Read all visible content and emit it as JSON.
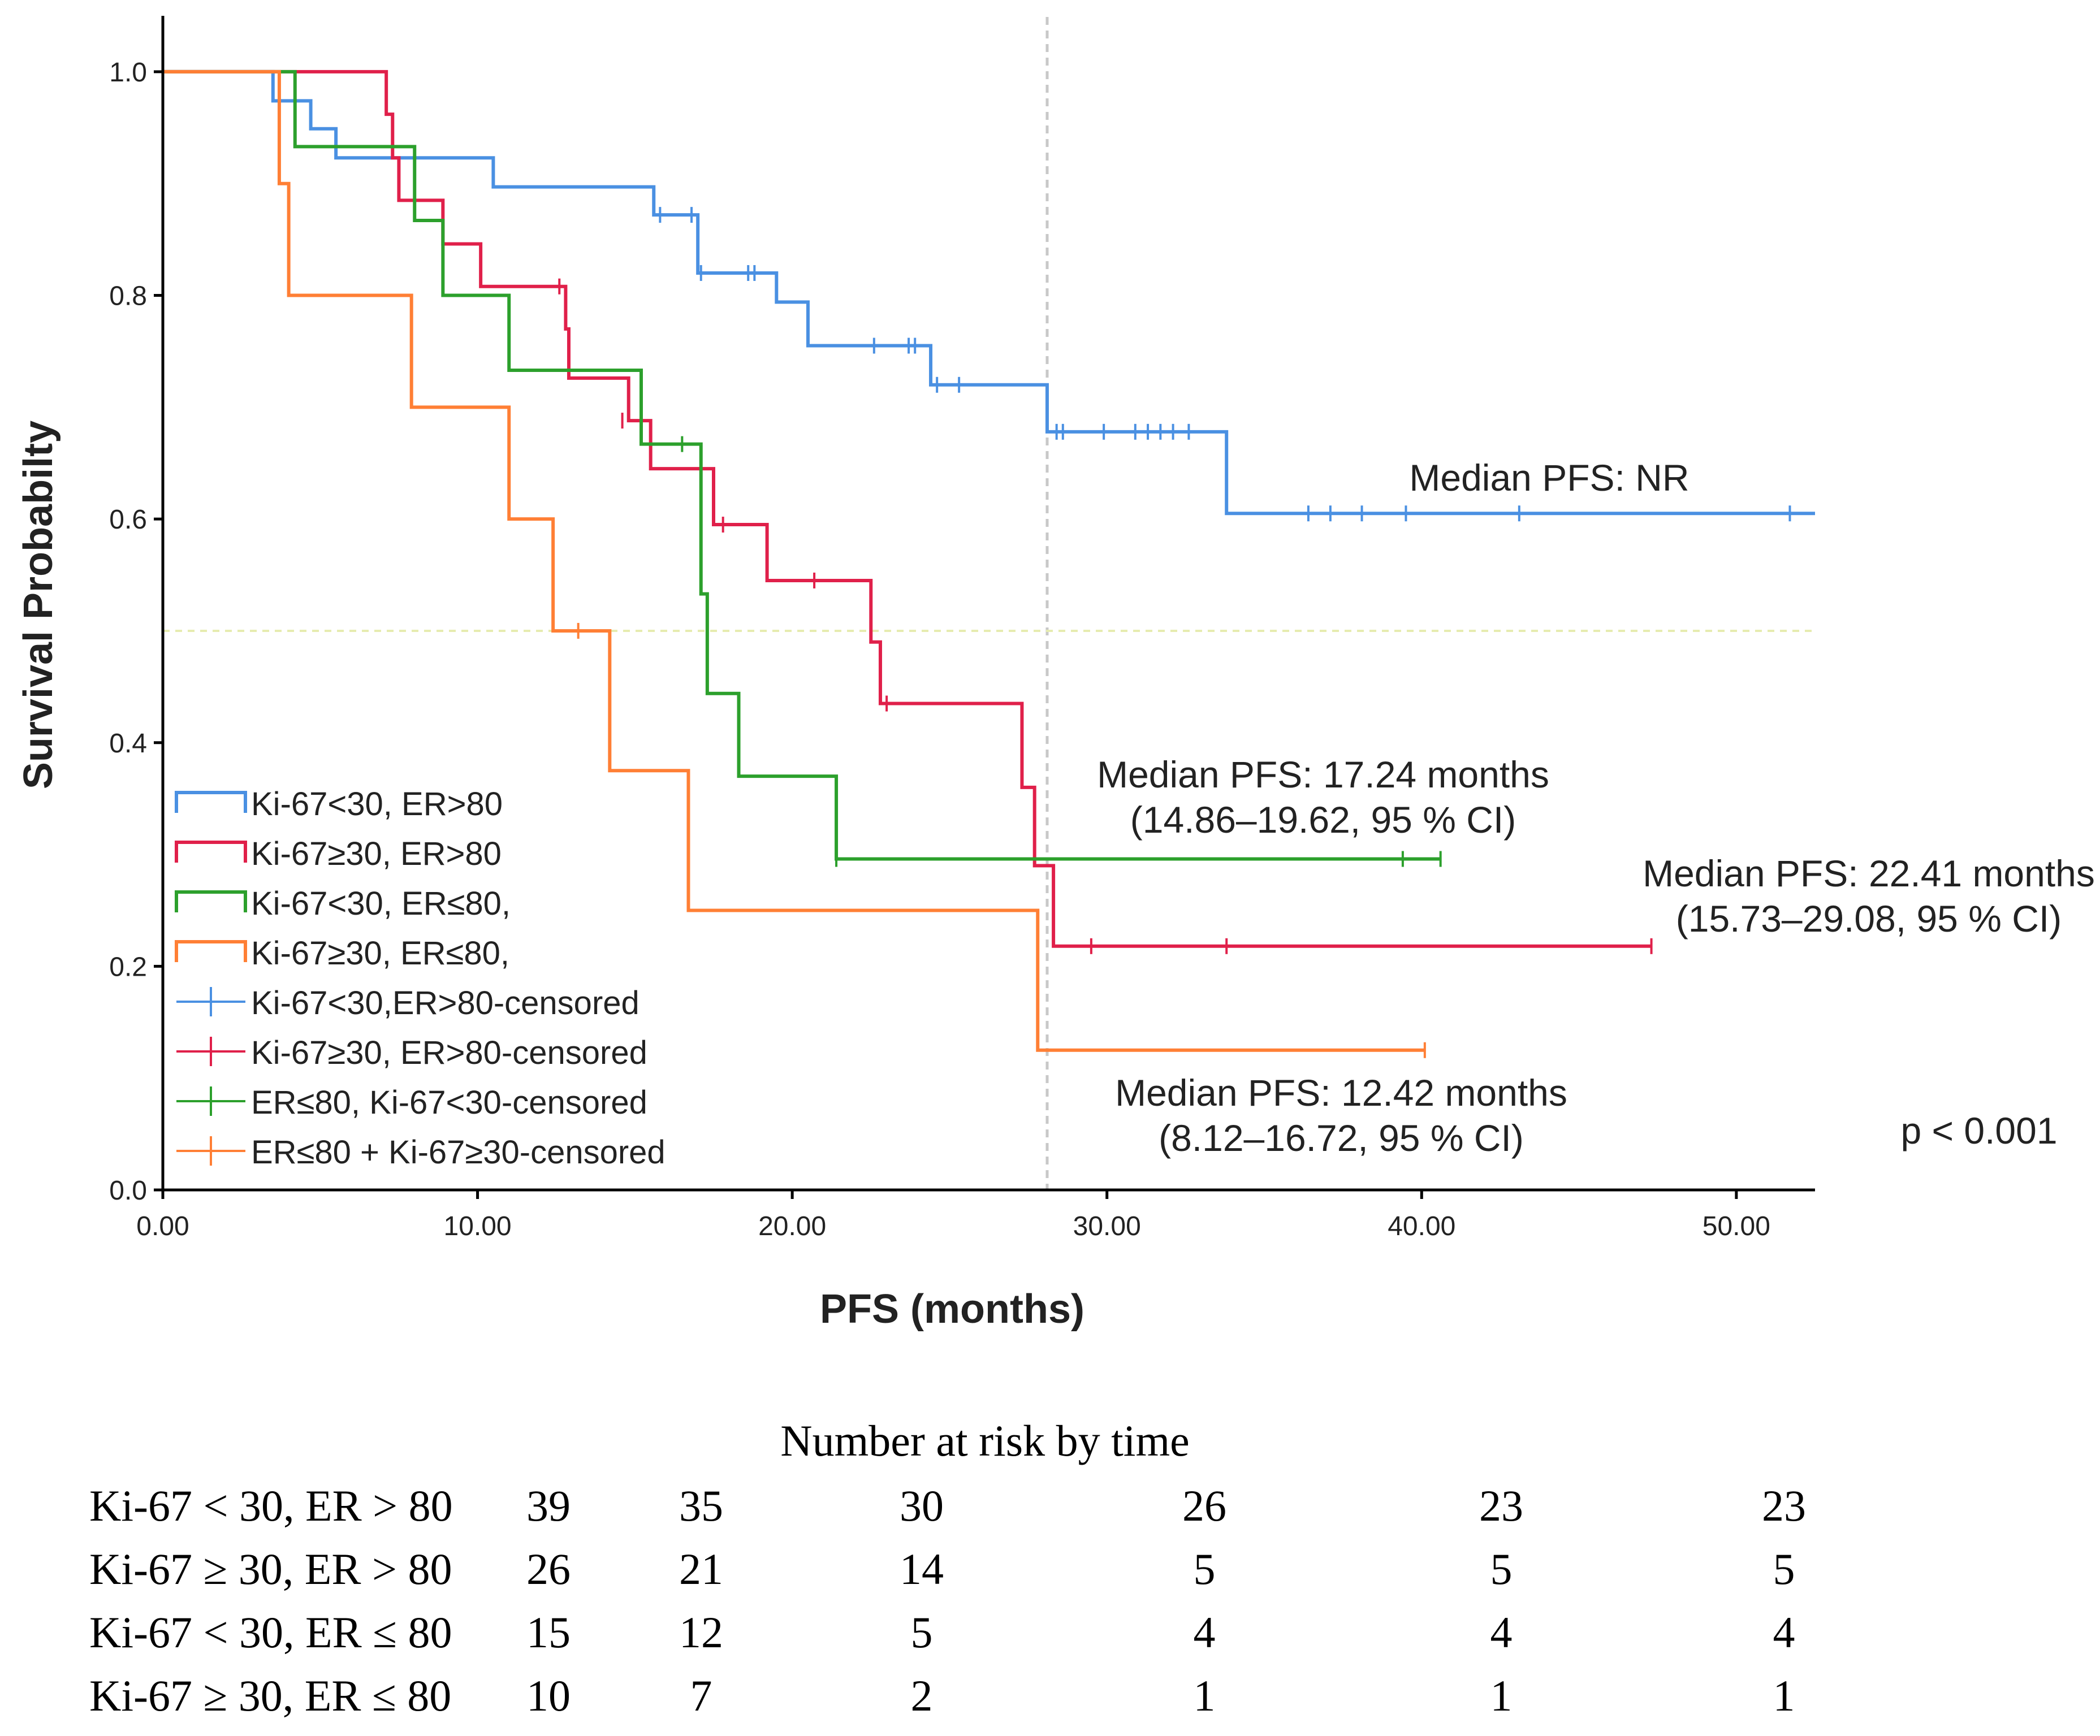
{
  "chart_data": {
    "type": "line",
    "subtype": "kaplan-meier step",
    "xlabel": "PFS (months)",
    "ylabel": "Survival Probabilty",
    "xlim": [
      0,
      52.5
    ],
    "ylim": [
      0,
      1.05
    ],
    "x_ticks": [
      0,
      10,
      20,
      30,
      40,
      50
    ],
    "x_tick_labels": [
      "0.00",
      "10.00",
      "20.00",
      "30.00",
      "40.00",
      "50.00"
    ],
    "y_ticks": [
      0,
      0.2,
      0.4,
      0.6,
      0.8,
      1.0
    ],
    "y_tick_labels": [
      "0.0",
      "0.2",
      "0.4",
      "0.6",
      "0.8",
      "1.0"
    ],
    "reference_lines": {
      "vertical_x": 28.1,
      "horizontal_y": 0.5
    },
    "legend_position": "bottom-left",
    "legend": [
      {
        "label": "Ki-67<30, ER>80",
        "kind": "line",
        "color": "#4a90e2"
      },
      {
        "label": "Ki-67≥30, ER>80",
        "kind": "line",
        "color": "#e0204a"
      },
      {
        "label": "Ki-67<30, ER≤80,",
        "kind": "line",
        "color": "#2ca02c"
      },
      {
        "label": "Ki-67≥30, ER≤80,",
        "kind": "line",
        "color": "#ff7f35"
      },
      {
        "label": "Ki-67<30,ER>80-censored",
        "kind": "cross",
        "color": "#4a90e2"
      },
      {
        "label": "Ki-67≥30, ER>80-censored",
        "kind": "cross",
        "color": "#e0204a"
      },
      {
        "label": "ER≤80, Ki-67<30-censored",
        "kind": "cross",
        "color": "#2ca02c"
      },
      {
        "label": "ER≤80 + Ki-67≥30-censored",
        "kind": "cross",
        "color": "#ff7f35"
      }
    ],
    "series": [
      {
        "name": "Ki-67<30, ER>80",
        "color": "#4a90e2",
        "steps": [
          [
            0,
            1.0
          ],
          [
            3.5,
            0.974
          ],
          [
            4.7,
            0.949
          ],
          [
            5.5,
            0.923
          ],
          [
            10.5,
            0.897
          ],
          [
            15.6,
            0.872
          ],
          [
            17.0,
            0.82
          ],
          [
            19.5,
            0.794
          ],
          [
            20.5,
            0.755
          ],
          [
            24.4,
            0.72
          ],
          [
            28.1,
            0.678
          ],
          [
            33.8,
            0.605
          ],
          [
            52.5,
            0.605
          ]
        ],
        "censored": [
          [
            15.8,
            0.872
          ],
          [
            16.8,
            0.872
          ],
          [
            17.1,
            0.82
          ],
          [
            18.6,
            0.82
          ],
          [
            18.8,
            0.82
          ],
          [
            22.6,
            0.755
          ],
          [
            23.7,
            0.755
          ],
          [
            23.9,
            0.755
          ],
          [
            24.6,
            0.72
          ],
          [
            25.3,
            0.72
          ],
          [
            28.4,
            0.678
          ],
          [
            28.6,
            0.678
          ],
          [
            29.9,
            0.678
          ],
          [
            30.9,
            0.678
          ],
          [
            31.3,
            0.678
          ],
          [
            31.7,
            0.678
          ],
          [
            32.1,
            0.678
          ],
          [
            32.6,
            0.678
          ],
          [
            36.4,
            0.605
          ],
          [
            37.1,
            0.605
          ],
          [
            38.1,
            0.605
          ],
          [
            39.5,
            0.605
          ],
          [
            43.1,
            0.605
          ],
          [
            51.7,
            0.605
          ]
        ]
      },
      {
        "name": "Ki-67≥30, ER>80",
        "color": "#e0204a",
        "steps": [
          [
            0,
            1.0
          ],
          [
            7.1,
            0.962
          ],
          [
            7.3,
            0.923
          ],
          [
            7.5,
            0.885
          ],
          [
            8.9,
            0.846
          ],
          [
            10.1,
            0.808
          ],
          [
            12.8,
            0.77
          ],
          [
            12.9,
            0.726
          ],
          [
            14.8,
            0.688
          ],
          [
            15.5,
            0.645
          ],
          [
            17.5,
            0.595
          ],
          [
            19.2,
            0.545
          ],
          [
            22.5,
            0.49
          ],
          [
            22.8,
            0.435
          ],
          [
            27.3,
            0.36
          ],
          [
            27.7,
            0.29
          ],
          [
            28.3,
            0.218
          ],
          [
            47.3,
            0.218
          ]
        ],
        "censored": [
          [
            12.6,
            0.808
          ],
          [
            14.6,
            0.688
          ],
          [
            17.8,
            0.595
          ],
          [
            20.7,
            0.545
          ],
          [
            23.0,
            0.435
          ],
          [
            29.5,
            0.218
          ],
          [
            33.8,
            0.218
          ],
          [
            47.3,
            0.218
          ]
        ]
      },
      {
        "name": "Ki-67<30, ER≤80,",
        "color": "#2ca02c",
        "steps": [
          [
            0,
            1.0
          ],
          [
            4.2,
            0.933
          ],
          [
            8.0,
            0.867
          ],
          [
            8.9,
            0.8
          ],
          [
            11.0,
            0.733
          ],
          [
            15.2,
            0.667
          ],
          [
            17.1,
            0.533
          ],
          [
            17.3,
            0.444
          ],
          [
            18.3,
            0.37
          ],
          [
            21.4,
            0.296
          ],
          [
            40.6,
            0.296
          ]
        ],
        "censored": [
          [
            16.5,
            0.667
          ],
          [
            21.4,
            0.296
          ],
          [
            39.4,
            0.296
          ],
          [
            40.6,
            0.296
          ]
        ]
      },
      {
        "name": "Ki-67≥30, ER≤80,",
        "color": "#ff7f35",
        "steps": [
          [
            0,
            1.0
          ],
          [
            3.7,
            0.9
          ],
          [
            4.0,
            0.8
          ],
          [
            7.9,
            0.7
          ],
          [
            11.0,
            0.6
          ],
          [
            12.4,
            0.5
          ],
          [
            14.2,
            0.375
          ],
          [
            16.7,
            0.25
          ],
          [
            27.8,
            0.125
          ],
          [
            40.1,
            0.125
          ]
        ],
        "censored": [
          [
            13.2,
            0.5
          ],
          [
            40.1,
            0.125
          ]
        ]
      }
    ],
    "annotations": [
      {
        "lines": [
          "Median PFS: NR"
        ]
      },
      {
        "lines": [
          "Median PFS: 17.24 months",
          "(14.86–19.62, 95 % CI)"
        ]
      },
      {
        "lines": [
          "Median PFS: 22.41 months",
          "(15.73–29.08, 95 % CI)"
        ]
      },
      {
        "lines": [
          "Median PFS: 12.42 months",
          "(8.12–16.72, 95 % CI)"
        ]
      },
      {
        "lines": [
          "p < 0.001"
        ]
      }
    ],
    "risk_table": {
      "title": "Number at risk by time",
      "rows": [
        {
          "label": "Ki-67 < 30, ER > 80",
          "values": [
            "39",
            "35",
            "30",
            "26",
            "23",
            "23"
          ]
        },
        {
          "label": "Ki-67 ≥ 30, ER > 80",
          "values": [
            "26",
            "21",
            "14",
            "5",
            "5",
            "5"
          ]
        },
        {
          "label": "Ki-67 < 30, ER ≤ 80",
          "values": [
            "15",
            "12",
            "5",
            "4",
            "4",
            "4"
          ]
        },
        {
          "label": "Ki-67 ≥ 30, ER ≤ 80",
          "values": [
            "10",
            "7",
            "2",
            "1",
            "1",
            "1"
          ]
        }
      ]
    }
  }
}
